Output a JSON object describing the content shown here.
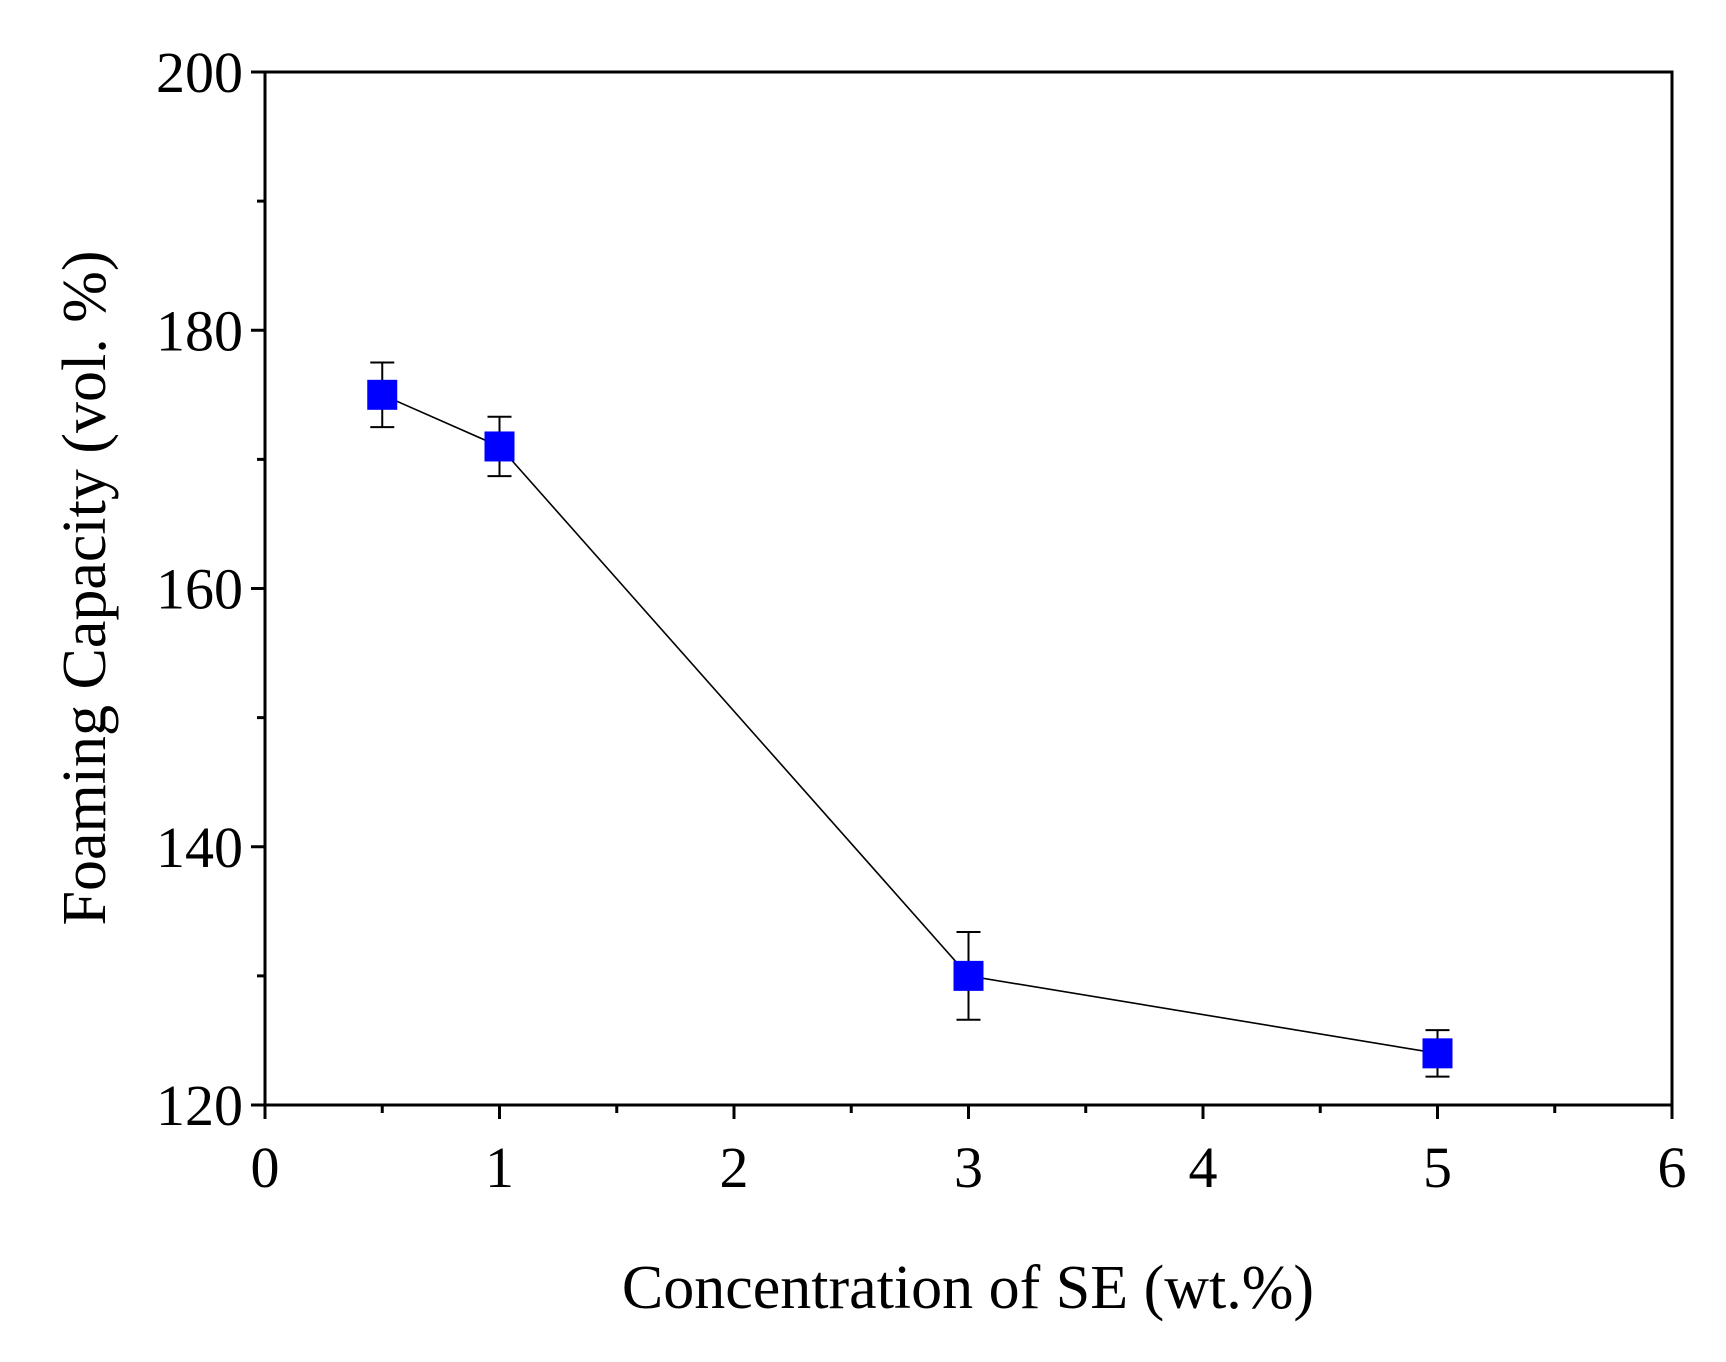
{
  "chart_data": {
    "type": "scatter",
    "xlabel": "Concentration of SE (wt.%)",
    "ylabel": "Foaming Capacity (vol. %)",
    "xlim": [
      0,
      6
    ],
    "ylim": [
      120,
      200
    ],
    "x_major_ticks": [
      0,
      1,
      2,
      3,
      4,
      5,
      6
    ],
    "x_minor_ticks": [
      0.5,
      1.5,
      2.5,
      3.5,
      4.5,
      5.5
    ],
    "y_major_ticks": [
      120,
      140,
      160,
      180,
      200
    ],
    "y_minor_ticks": [
      130,
      150,
      170,
      190
    ],
    "x_tick_labels": [
      "0",
      "1",
      "2",
      "3",
      "4",
      "5",
      "6"
    ],
    "y_tick_labels": [
      "120",
      "140",
      "160",
      "180",
      "200"
    ],
    "grid": false,
    "series": [
      {
        "name": "Foaming Capacity",
        "marker": "square",
        "color": "#0000ff",
        "line_color": "#000000",
        "x": [
          0.5,
          1,
          3,
          5
        ],
        "y": [
          175,
          171,
          130,
          124
        ],
        "error": [
          2.5,
          2.3,
          3.4,
          1.8
        ]
      }
    ]
  }
}
